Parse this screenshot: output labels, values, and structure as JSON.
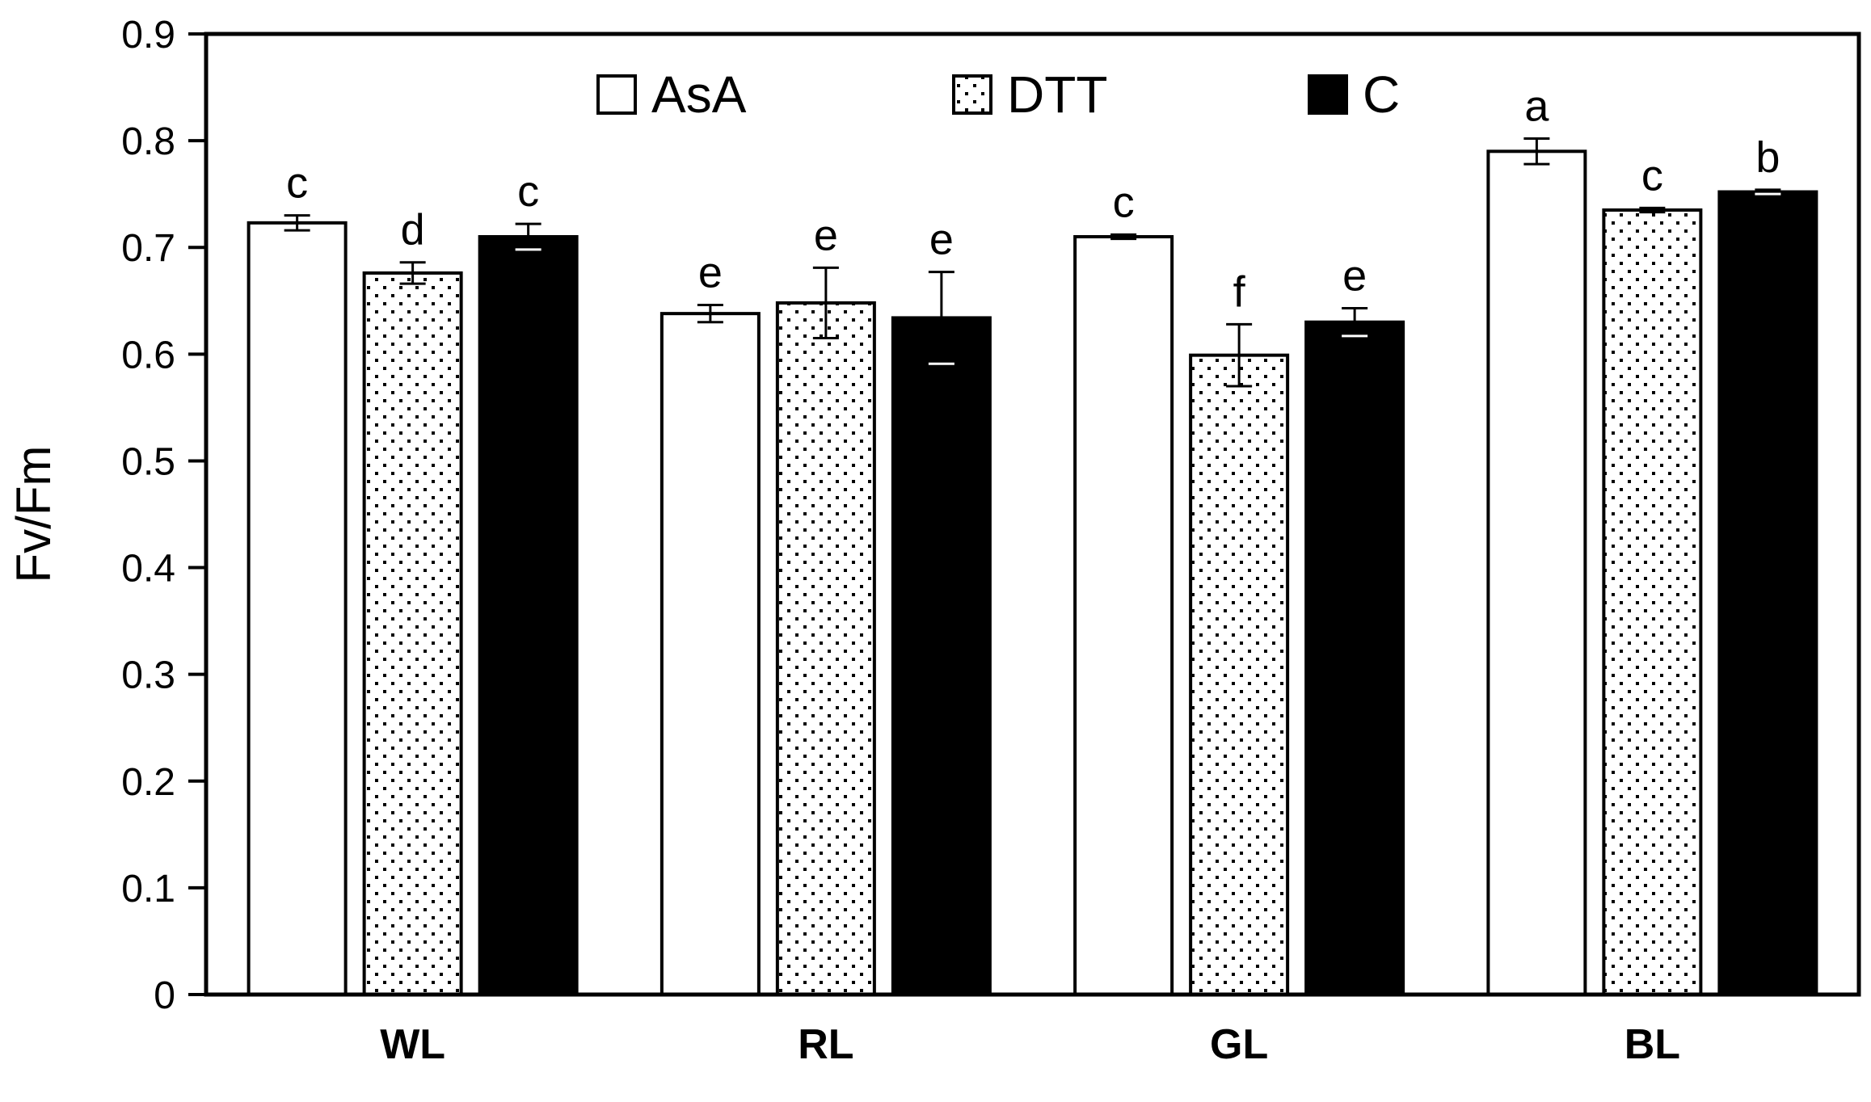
{
  "chart_data": {
    "type": "bar",
    "title": "",
    "xlabel": "",
    "ylabel": "Fv/Fm",
    "ylim": [
      0,
      0.9
    ],
    "yticks": [
      "0",
      "0.1",
      "0.2",
      "0.3",
      "0.4",
      "0.5",
      "0.6",
      "0.7",
      "0.8",
      "0.9"
    ],
    "categories": [
      "WL",
      "RL",
      "GL",
      "BL"
    ],
    "legend_position": "top-center",
    "series": [
      {
        "name": "AsA",
        "fill": "white",
        "values": [
          0.723,
          0.638,
          0.71,
          0.79
        ],
        "errors": [
          0.007,
          0.008,
          0.002,
          0.012
        ],
        "labels": [
          "c",
          "e",
          "c",
          "a"
        ]
      },
      {
        "name": "DTT",
        "fill": "dotted",
        "values": [
          0.676,
          0.648,
          0.599,
          0.735
        ],
        "errors": [
          0.01,
          0.033,
          0.029,
          0.002
        ],
        "labels": [
          "d",
          "e",
          "f",
          "c"
        ]
      },
      {
        "name": "C",
        "fill": "black",
        "values": [
          0.71,
          0.634,
          0.63,
          0.752
        ],
        "errors": [
          0.012,
          0.043,
          0.013,
          0.002
        ],
        "labels": [
          "c",
          "e",
          "e",
          "b"
        ]
      }
    ]
  },
  "colors": {
    "white": "#ffffff",
    "black": "#000000",
    "dot": "#000000"
  }
}
